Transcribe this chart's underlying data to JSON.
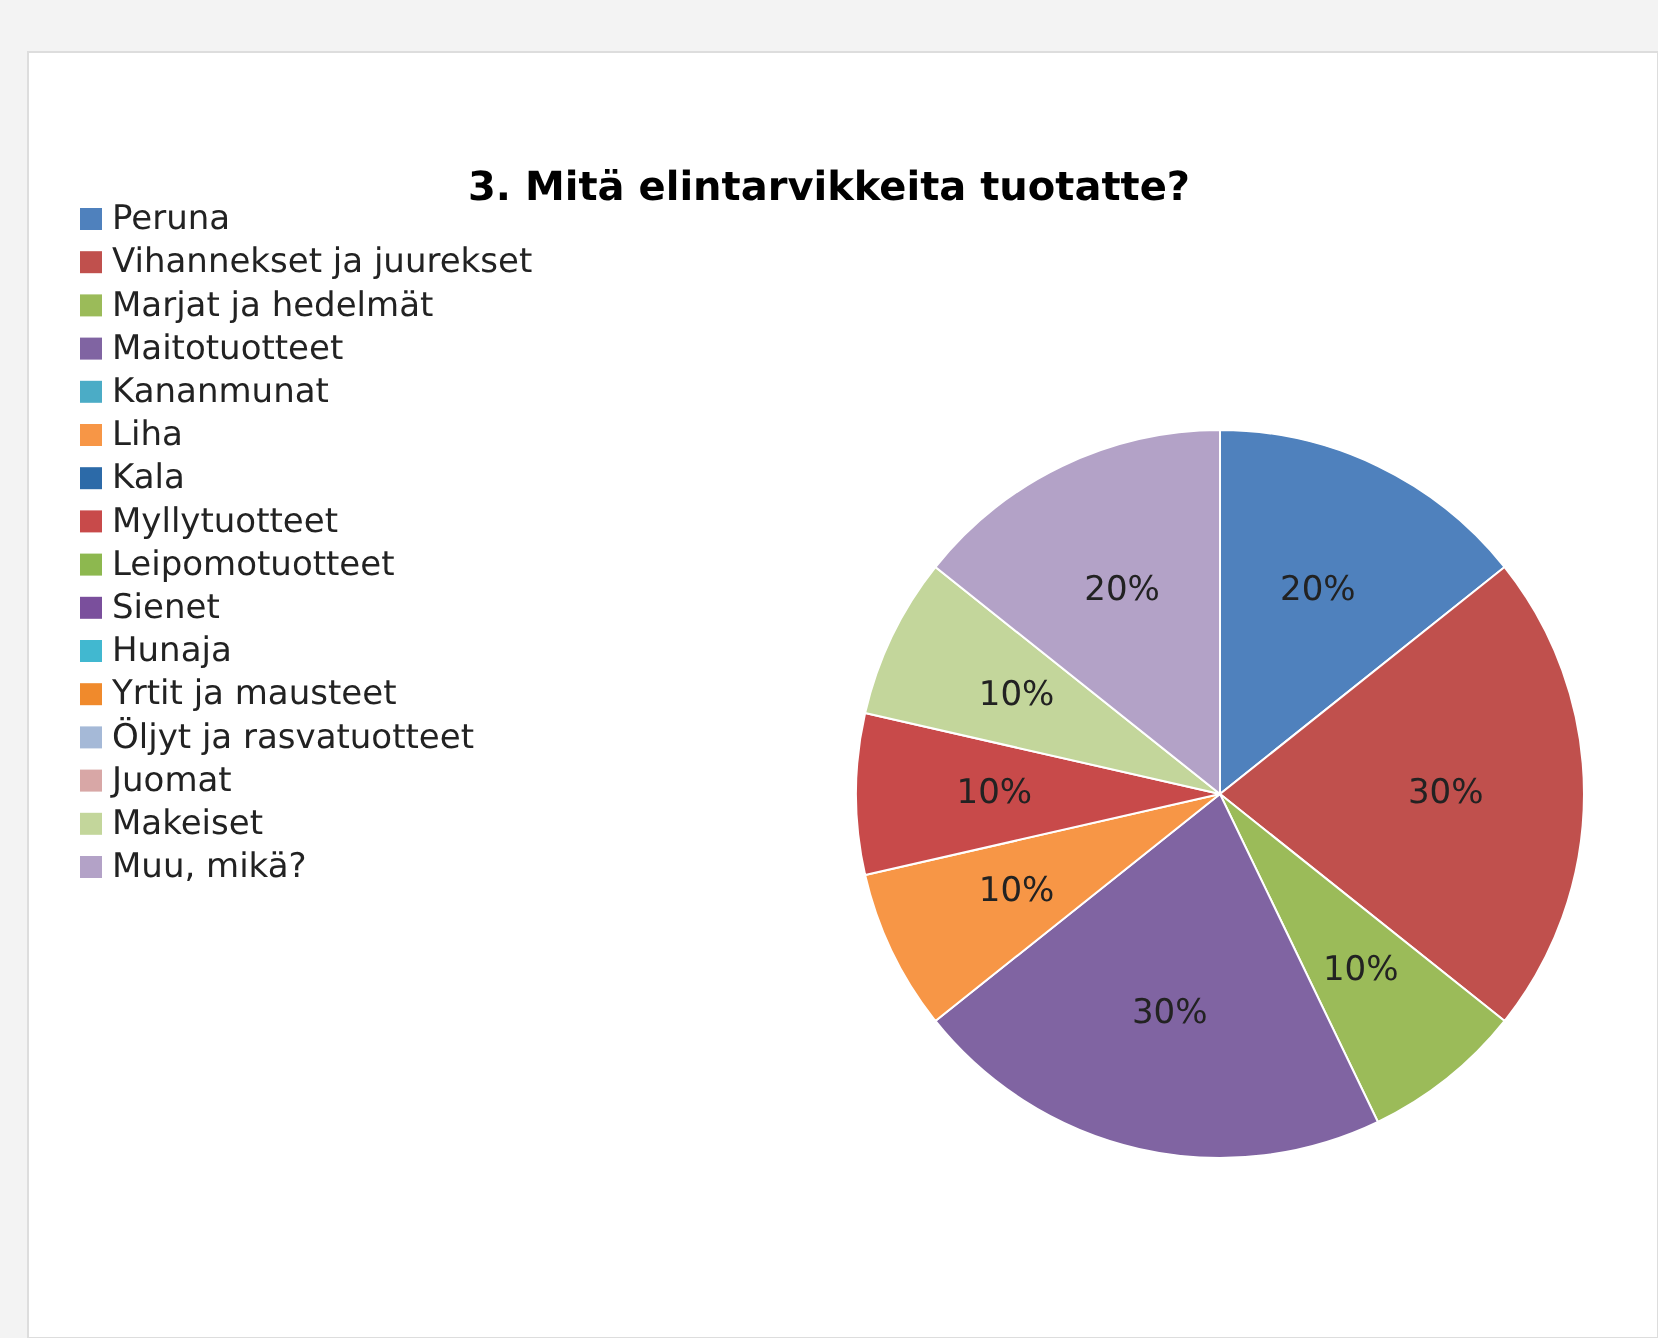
{
  "chart_data": {
    "type": "pie",
    "title": "3. Mitä elintarvikkeita tuotatte?",
    "categories": [
      "Peruna",
      "Vihannekset ja juurekset",
      "Marjat ja hedelmät",
      "Maitotuotteet",
      "Kananmunat",
      "Liha",
      "Kala",
      "Myllytuotteet",
      "Leipomotuotteet",
      "Sienet",
      "Hunaja",
      "Yrtit ja mausteet",
      "Öljyt ja rasvatuotteet",
      "Juomat",
      "Makeiset",
      "Muu, mikä?"
    ],
    "values": [
      20,
      30,
      10,
      30,
      0,
      10,
      0,
      10,
      0,
      0,
      0,
      0,
      0,
      0,
      10,
      20
    ],
    "value_labels": [
      "20%",
      "30%",
      "10%",
      "30%",
      null,
      "10%",
      null,
      "10%",
      null,
      null,
      null,
      null,
      null,
      null,
      "10%",
      "20%"
    ],
    "colors": [
      "#4f81bd",
      "#c0504d",
      "#9bbb59",
      "#8064a2",
      "#4bacc6",
      "#f79646",
      "#2c6aa8",
      "#c84a4a",
      "#8db84f",
      "#7a4f9c",
      "#41b8d0",
      "#f08a2c",
      "#a5b9d7",
      "#d8a7a6",
      "#c3d69b",
      "#b3a2c7"
    ],
    "legend": "left"
  }
}
